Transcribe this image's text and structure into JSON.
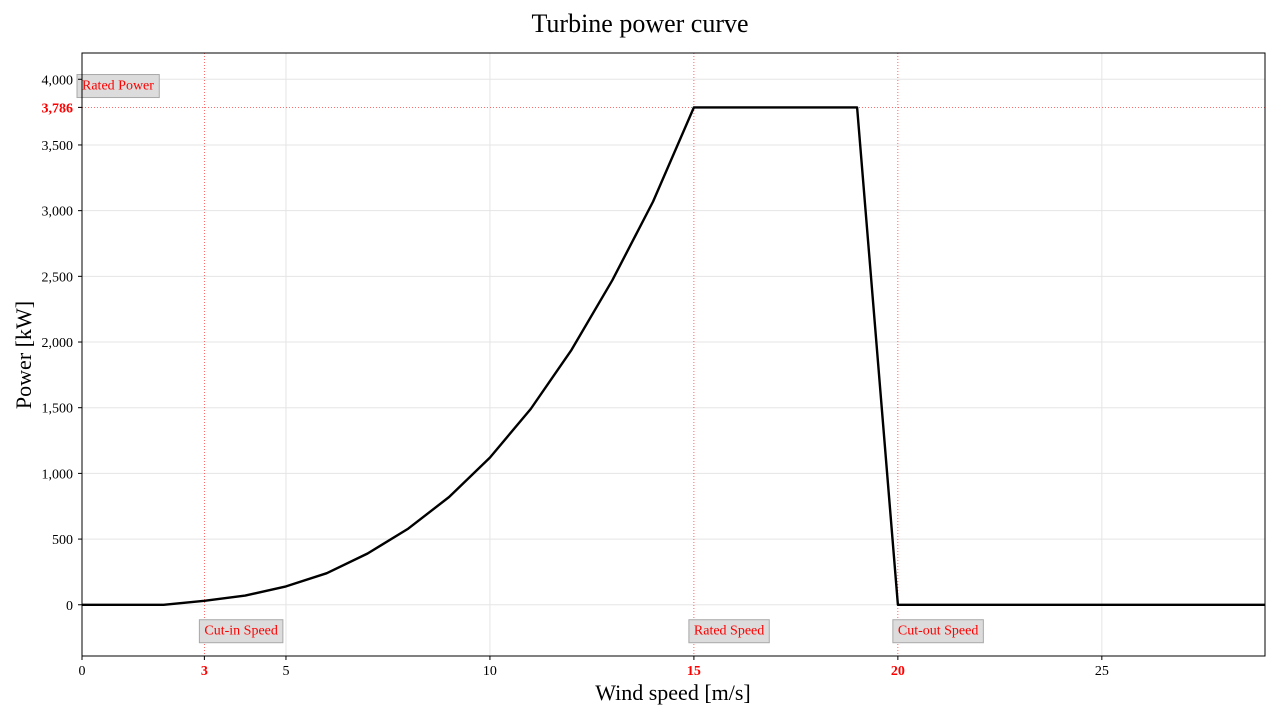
{
  "chart_data": {
    "type": "line",
    "title": "Turbine power curve",
    "xlabel": "Wind speed [m/s]",
    "ylabel": "Power [kW]",
    "xlim": [
      0,
      29
    ],
    "ylim": [
      -390,
      4200
    ],
    "grid": true,
    "x_ticks": [
      {
        "value": 0,
        "label": "0",
        "accent": false
      },
      {
        "value": 3,
        "label": "3",
        "accent": true
      },
      {
        "value": 5,
        "label": "5",
        "accent": false
      },
      {
        "value": 10,
        "label": "10",
        "accent": false
      },
      {
        "value": 15,
        "label": "15",
        "accent": true
      },
      {
        "value": 20,
        "label": "20",
        "accent": true
      },
      {
        "value": 25,
        "label": "25",
        "accent": false
      }
    ],
    "y_ticks": [
      {
        "value": 0,
        "label": "0",
        "accent": false
      },
      {
        "value": 500,
        "label": "500",
        "accent": false
      },
      {
        "value": 1000,
        "label": "1,000",
        "accent": false
      },
      {
        "value": 1500,
        "label": "1,500",
        "accent": false
      },
      {
        "value": 2000,
        "label": "2,000",
        "accent": false
      },
      {
        "value": 2500,
        "label": "2,500",
        "accent": false
      },
      {
        "value": 3000,
        "label": "3,000",
        "accent": false
      },
      {
        "value": 3500,
        "label": "3,500",
        "accent": false
      },
      {
        "value": 3786,
        "label": "3,786",
        "accent": true
      },
      {
        "value": 4000,
        "label": "4,000",
        "accent": false
      }
    ],
    "series": [
      {
        "x": [
          0,
          1,
          2,
          3,
          4,
          5,
          6,
          7,
          8,
          9,
          10,
          11,
          12,
          13,
          14,
          15,
          16,
          17,
          18,
          19,
          20,
          21,
          22,
          23,
          24,
          25,
          26,
          27,
          28,
          29
        ],
        "y": [
          0,
          0,
          0,
          30,
          70,
          140,
          240,
          390,
          580,
          820,
          1120,
          1490,
          1940,
          2470,
          3070,
          3786,
          3786,
          3786,
          3786,
          3786,
          0,
          0,
          0,
          0,
          0,
          0,
          0,
          0,
          0,
          0
        ],
        "color": "#000000"
      }
    ],
    "reference_lines": {
      "vertical": [
        3,
        15,
        20
      ],
      "horizontal": [
        3786
      ],
      "color": "#ff0000"
    },
    "annotations": [
      {
        "text": "Cut-in Speed",
        "x": 3,
        "y": -190
      },
      {
        "text": "Rated Speed",
        "x": 15,
        "y": -190
      },
      {
        "text": "Cut-out Speed",
        "x": 20,
        "y": -190
      },
      {
        "text": "Rated Power",
        "x": 0,
        "y": 3960
      }
    ]
  }
}
